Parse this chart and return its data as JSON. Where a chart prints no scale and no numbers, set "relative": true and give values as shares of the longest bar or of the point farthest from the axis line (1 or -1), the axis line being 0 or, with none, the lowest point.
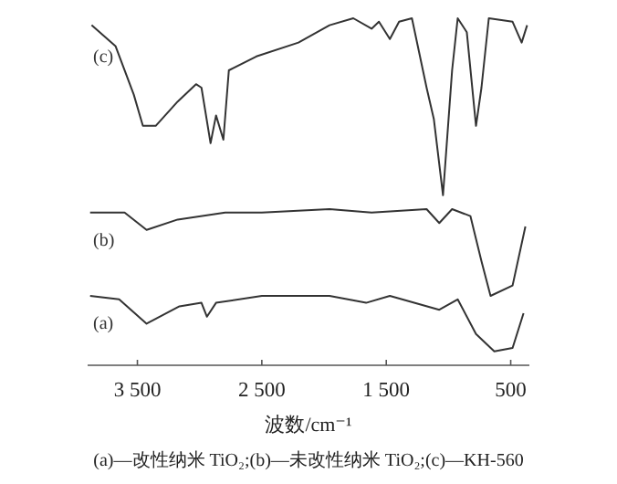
{
  "chart_data": {
    "type": "line",
    "relative": true,
    "xlabel": "波数/cm⁻¹",
    "xlim": [
      3900,
      350
    ],
    "xticks": [
      {
        "value": 3500,
        "label": "3 500"
      },
      {
        "value": 2500,
        "label": "2 500"
      },
      {
        "value": 1500,
        "label": "1 500"
      },
      500
    ],
    "grid": false,
    "legend": false,
    "marker": "none",
    "line_style": "solid",
    "annotations": [
      "(a)—改性纳米 TiO₂;(b)—未改性纳米 TiO₂;(c)—KH-560"
    ],
    "series": [
      {
        "name": "(c)",
        "color": "#333333",
        "x": [
          3868,
          3676,
          3529,
          3456,
          3353,
          3176,
          3029,
          2985,
          2912,
          2868,
          2809,
          2765,
          2544,
          2206,
          1956,
          1765,
          1618,
          1559,
          1471,
          1397,
          1294,
          1176,
          1118,
          1044,
          971,
          926,
          853,
          779,
          735,
          676,
          485,
          412,
          368
        ],
        "values": [
          0.98,
          0.92,
          0.78,
          0.69,
          0.69,
          0.76,
          0.81,
          0.8,
          0.64,
          0.72,
          0.65,
          0.85,
          0.89,
          0.93,
          0.98,
          1.0,
          0.97,
          0.99,
          0.94,
          0.99,
          1.0,
          0.8,
          0.71,
          0.49,
          0.85,
          1.0,
          0.96,
          0.69,
          0.8,
          1.0,
          0.99,
          0.93,
          0.98
        ]
      },
      {
        "name": "(b)",
        "color": "#333333",
        "x": [
          3880,
          3603,
          3426,
          3176,
          2794,
          2500,
          1956,
          1618,
          1176,
          1074,
          971,
          824,
          735,
          662,
          485,
          382
        ],
        "values": [
          0.44,
          0.44,
          0.39,
          0.42,
          0.44,
          0.44,
          0.45,
          0.44,
          0.45,
          0.41,
          0.45,
          0.43,
          0.3,
          0.2,
          0.23,
          0.4
        ]
      },
      {
        "name": "(a)",
        "color": "#333333",
        "x": [
          3880,
          3647,
          3426,
          3162,
          2985,
          2941,
          2868,
          2500,
          1956,
          1662,
          1471,
          1074,
          926,
          779,
          632,
          485,
          397
        ],
        "values": [
          0.2,
          0.19,
          0.12,
          0.17,
          0.18,
          0.14,
          0.18,
          0.2,
          0.2,
          0.18,
          0.2,
          0.16,
          0.19,
          0.09,
          0.04,
          0.05,
          0.15
        ]
      }
    ]
  }
}
